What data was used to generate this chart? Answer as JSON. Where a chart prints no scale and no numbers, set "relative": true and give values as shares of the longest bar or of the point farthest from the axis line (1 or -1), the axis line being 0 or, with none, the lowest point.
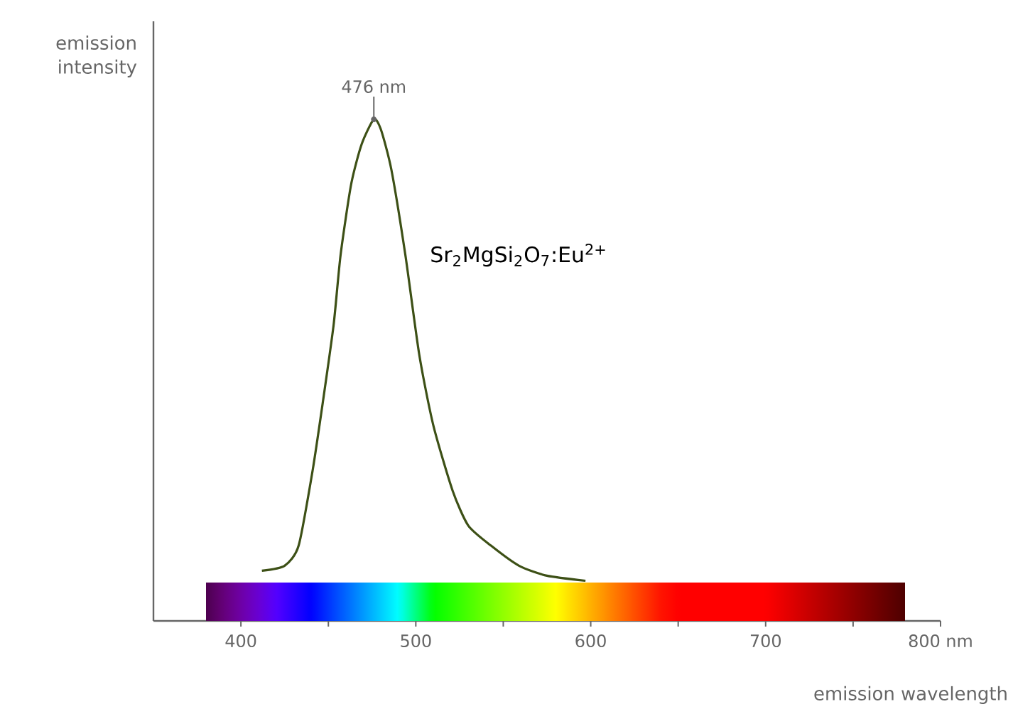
{
  "chart_data": {
    "type": "line",
    "relative": true,
    "xlabel": "emission wavelength",
    "ylabel": "emission intensity",
    "x": [
      412,
      425,
      433,
      441,
      447,
      453,
      457,
      463,
      469,
      476,
      480,
      486,
      494,
      502,
      510,
      521,
      530,
      543,
      559,
      575,
      597
    ],
    "series": [
      {
        "color": "#3d5016",
        "values": [
          0.1,
          0.11,
          0.15,
          0.3,
          0.44,
          0.59,
          0.73,
          0.87,
          0.95,
          1.0,
          0.98,
          0.9,
          0.73,
          0.53,
          0.39,
          0.26,
          0.19,
          0.15,
          0.11,
          0.09,
          0.08
        ]
      }
    ],
    "xlim": [
      350,
      800
    ],
    "xticks": [
      400,
      {
        "value": 450,
        "label": null
      },
      500,
      {
        "value": 550,
        "label": null
      },
      600,
      {
        "value": 650,
        "label": null
      },
      700,
      {
        "value": 750,
        "label": null
      },
      {
        "value": 800,
        "label": "800 nm"
      }
    ],
    "annotations": [
      {
        "text": "476 nm",
        "x": 476,
        "y": 1.0
      },
      "Sr$_{2}$MgSi$_{2}$O$_{7}$:Eu$^{2+}$"
    ],
    "bands": [
      {
        "axis": "x",
        "from": 380,
        "to": 780
      }
    ],
    "grid": false,
    "marker": "none",
    "line_style": "solid"
  }
}
